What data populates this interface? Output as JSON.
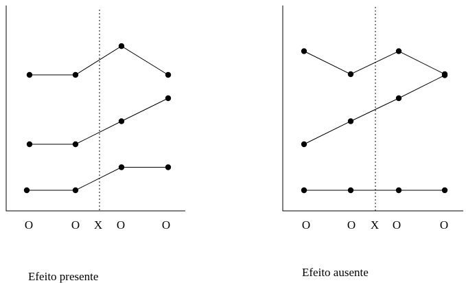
{
  "panels": [
    {
      "id": "left",
      "caption": "Efeito presente",
      "ticks": [
        "O",
        "O",
        "X",
        "O",
        "O"
      ],
      "series": [
        {
          "points": [
            {
              "x": 1,
              "y": 5
            },
            {
              "x": 2,
              "y": 5
            },
            {
              "x": 3,
              "y": 6.25
            },
            {
              "x": 4,
              "y": 5
            }
          ]
        },
        {
          "points": [
            {
              "x": 1,
              "y": 2
            },
            {
              "x": 2,
              "y": 2
            },
            {
              "x": 3,
              "y": 3
            },
            {
              "x": 4,
              "y": 4
            }
          ]
        },
        {
          "points": [
            {
              "x": 1,
              "y": 0
            },
            {
              "x": 2,
              "y": 0
            },
            {
              "x": 3,
              "y": 1
            },
            {
              "x": 4,
              "y": 1
            }
          ]
        }
      ]
    },
    {
      "id": "right",
      "caption": "Efeito ausente",
      "ticks": [
        "O",
        "O",
        "X",
        "O",
        "O"
      ],
      "series": [
        {
          "points": [
            {
              "x": 1,
              "y": 6
            },
            {
              "x": 2,
              "y": 5
            },
            {
              "x": 3,
              "y": 6
            },
            {
              "x": 4,
              "y": 5
            }
          ]
        },
        {
          "points": [
            {
              "x": 1,
              "y": 1
            },
            {
              "x": 2,
              "y": 2
            },
            {
              "x": 3,
              "y": 3
            },
            {
              "x": 4,
              "y": 4
            }
          ]
        },
        {
          "points": [
            {
              "x": 1,
              "y": 0
            },
            {
              "x": 2,
              "y": 0
            },
            {
              "x": 3,
              "y": 0
            },
            {
              "x": 4,
              "y": 0
            }
          ]
        }
      ]
    }
  ]
}
